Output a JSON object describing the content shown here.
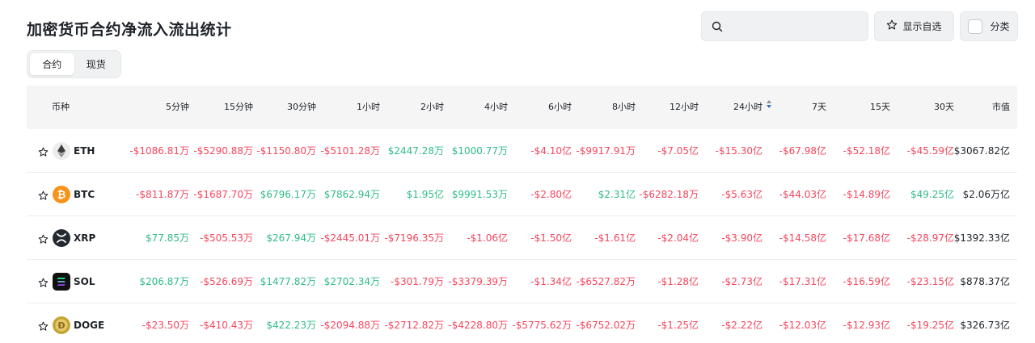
{
  "page": {
    "title": "加密货币合约净流入流出统计"
  },
  "search": {
    "value": "",
    "placeholder": ""
  },
  "toolbar": {
    "favorites_label": "显示自选",
    "category_label": "分类"
  },
  "tabs": [
    {
      "label": "合约",
      "active": true
    },
    {
      "label": "现货",
      "active": false
    }
  ],
  "table": {
    "columns": [
      "币种",
      "5分钟",
      "15分钟",
      "30分钟",
      "1小时",
      "2小时",
      "4小时",
      "6小时",
      "8小时",
      "12小时",
      "24小时",
      "7天",
      "15天",
      "30天",
      "市值"
    ],
    "sorted_column": "24小时",
    "rows": [
      {
        "symbol": "ETH",
        "icon": "eth-icon",
        "values": [
          "-$1086.81万",
          "-$5290.88万",
          "-$1150.80万",
          "-$5101.28万",
          "$2447.28万",
          "$1000.77万",
          "-$4.10亿",
          "-$9917.91万",
          "-$7.05亿",
          "-$15.30亿",
          "-$67.98亿",
          "-$52.18亿",
          "-$45.59亿"
        ],
        "market_cap": "$3067.82亿"
      },
      {
        "symbol": "BTC",
        "icon": "btc-icon",
        "values": [
          "-$811.87万",
          "-$1687.70万",
          "$6796.17万",
          "$7862.94万",
          "$1.95亿",
          "$9991.53万",
          "-$2.80亿",
          "$2.31亿",
          "-$6282.18万",
          "-$5.63亿",
          "-$44.03亿",
          "-$14.89亿",
          "$49.25亿"
        ],
        "market_cap": "$2.06万亿"
      },
      {
        "symbol": "XRP",
        "icon": "xrp-icon",
        "values": [
          "$77.85万",
          "-$505.53万",
          "$267.94万",
          "-$2445.01万",
          "-$7196.35万",
          "-$1.06亿",
          "-$1.50亿",
          "-$1.61亿",
          "-$2.04亿",
          "-$3.90亿",
          "-$14.58亿",
          "-$17.68亿",
          "-$28.97亿"
        ],
        "market_cap": "$1392.33亿"
      },
      {
        "symbol": "SOL",
        "icon": "sol-icon",
        "values": [
          "$206.87万",
          "-$526.69万",
          "$1477.82万",
          "$2702.34万",
          "-$301.79万",
          "-$3379.39万",
          "-$1.34亿",
          "-$6527.82万",
          "-$1.28亿",
          "-$2.73亿",
          "-$17.31亿",
          "-$16.59亿",
          "-$23.15亿"
        ],
        "market_cap": "$878.37亿"
      },
      {
        "symbol": "DOGE",
        "icon": "doge-icon",
        "values": [
          "-$23.50万",
          "-$410.43万",
          "$422.23万",
          "-$2094.88万",
          "-$2712.82万",
          "-$4228.80万",
          "-$5775.62万",
          "-$6752.02万",
          "-$1.25亿",
          "-$2.22亿",
          "-$12.03亿",
          "-$12.93亿",
          "-$19.25亿"
        ],
        "market_cap": "$326.73亿"
      }
    ]
  },
  "colors": {
    "positive": "#2ebd85",
    "negative": "#f6465d",
    "accent": "#3375bb"
  }
}
